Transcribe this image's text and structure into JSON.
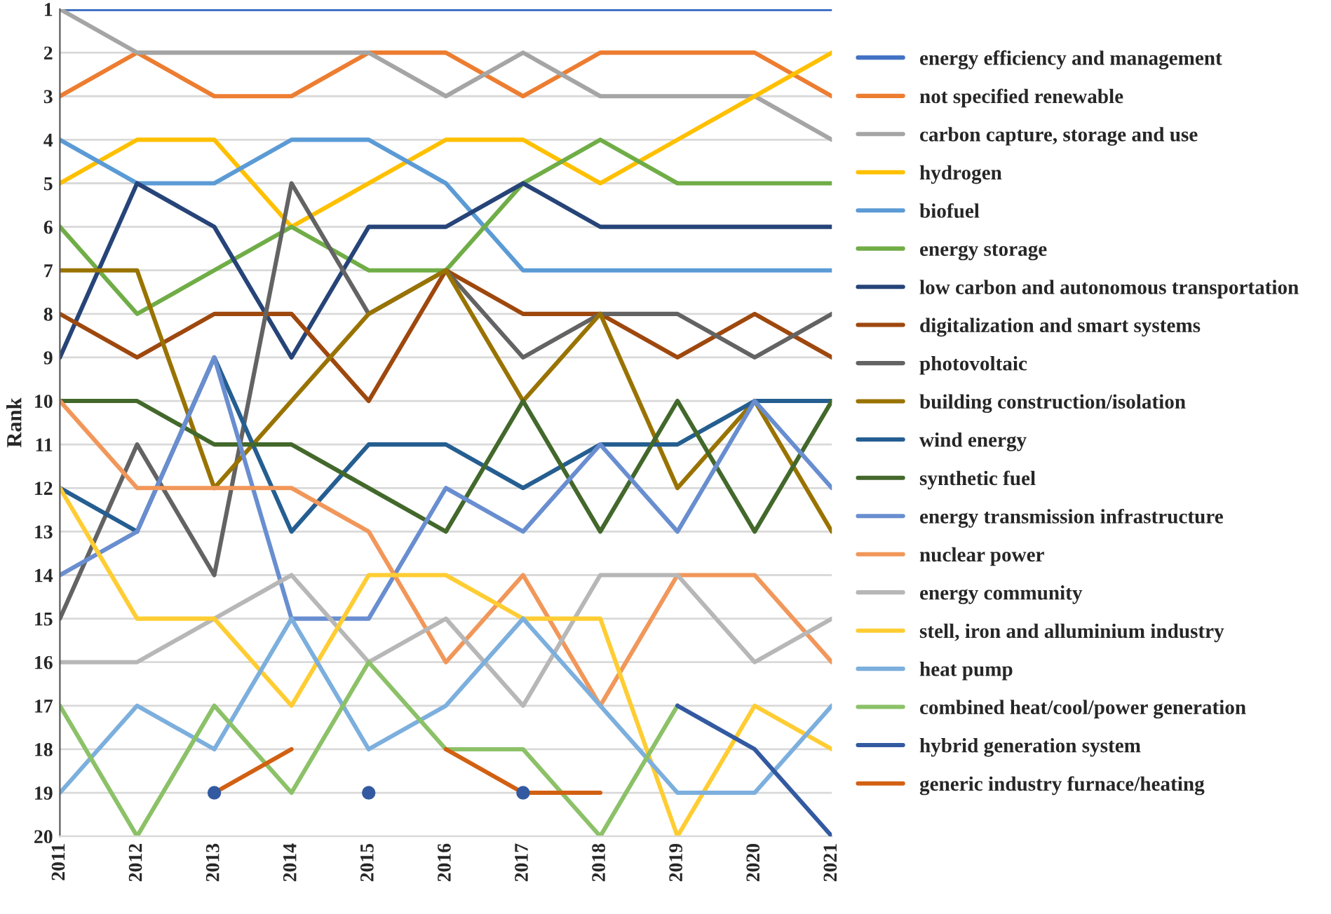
{
  "chart_data": {
    "type": "line",
    "ylabel": "Rank",
    "categories": [
      "2011",
      "2012",
      "2013",
      "2014",
      "2015",
      "2016",
      "2017",
      "2018",
      "2019",
      "2020",
      "2021"
    ],
    "ylim": [
      20,
      1
    ],
    "yticks": [
      1,
      2,
      3,
      4,
      5,
      6,
      7,
      8,
      9,
      10,
      11,
      12,
      13,
      14,
      15,
      16,
      17,
      18,
      19,
      20
    ],
    "grid": "y",
    "legend": "right",
    "line_style": "solid",
    "series": [
      {
        "name": "energy efficiency and management",
        "color": "#4472c4",
        "values": [
          1,
          1,
          1,
          1,
          1,
          1,
          1,
          1,
          1,
          1,
          1
        ]
      },
      {
        "name": "not specified renewable",
        "color": "#ed7d31",
        "values": [
          3,
          2,
          3,
          3,
          2,
          2,
          3,
          2,
          2,
          2,
          3
        ]
      },
      {
        "name": "carbon capture, storage and use",
        "color": "#a5a5a5",
        "values": [
          1,
          2,
          2,
          2,
          2,
          3,
          2,
          3,
          3,
          3,
          4
        ]
      },
      {
        "name": "hydrogen",
        "color": "#ffc000",
        "values": [
          5,
          4,
          4,
          6,
          5,
          4,
          4,
          5,
          4,
          3,
          2
        ]
      },
      {
        "name": "biofuel",
        "color": "#5b9bd5",
        "values": [
          4,
          5,
          5,
          4,
          4,
          5,
          7,
          7,
          7,
          7,
          7
        ]
      },
      {
        "name": "energy storage",
        "color": "#70ad47",
        "values": [
          6,
          8,
          7,
          6,
          7,
          7,
          5,
          4,
          5,
          5,
          5
        ]
      },
      {
        "name": "low carbon and autonomous transportation",
        "color": "#264478",
        "values": [
          9,
          5,
          6,
          9,
          6,
          6,
          5,
          6,
          6,
          6,
          6
        ]
      },
      {
        "name": "digitalization and smart systems",
        "color": "#9e480e",
        "values": [
          8,
          9,
          8,
          8,
          10,
          7,
          8,
          8,
          9,
          8,
          9
        ]
      },
      {
        "name": "photovoltaic",
        "color": "#636363",
        "values": [
          15,
          11,
          14,
          5,
          8,
          7,
          9,
          8,
          8,
          9,
          8
        ]
      },
      {
        "name": "building construction/isolation",
        "color": "#997300",
        "values": [
          7,
          7,
          12,
          10,
          8,
          7,
          10,
          8,
          12,
          10,
          13
        ]
      },
      {
        "name": "wind energy",
        "color": "#255e91",
        "values": [
          12,
          13,
          9,
          13,
          11,
          11,
          12,
          11,
          11,
          10,
          10
        ]
      },
      {
        "name": "synthetic fuel",
        "color": "#43682b",
        "values": [
          10,
          10,
          11,
          11,
          12,
          13,
          10,
          13,
          10,
          13,
          10
        ]
      },
      {
        "name": "energy transmission infrastructure",
        "color": "#698ed0",
        "values": [
          14,
          13,
          9,
          15,
          15,
          12,
          13,
          11,
          13,
          10,
          12
        ]
      },
      {
        "name": "nuclear power",
        "color": "#f1975a",
        "values": [
          10,
          12,
          12,
          12,
          13,
          16,
          14,
          17,
          14,
          14,
          16
        ]
      },
      {
        "name": "energy community",
        "color": "#b7b7b7",
        "values": [
          16,
          16,
          15,
          14,
          16,
          15,
          17,
          14,
          14,
          16,
          15
        ]
      },
      {
        "name": "stell, iron and alluminium industry",
        "color": "#ffcd33",
        "values": [
          12,
          15,
          15,
          17,
          14,
          14,
          15,
          15,
          20,
          17,
          18
        ]
      },
      {
        "name": "heat pump",
        "color": "#7cafdd",
        "values": [
          19,
          17,
          18,
          15,
          18,
          17,
          15,
          17,
          19,
          19,
          17
        ]
      },
      {
        "name": "combined heat/cool/power generation",
        "color": "#8cc168",
        "values": [
          17,
          20,
          17,
          19,
          16,
          18,
          18,
          20,
          17,
          null,
          null
        ]
      },
      {
        "name": "hybrid generation system",
        "color": "#335aa1",
        "values": [
          null,
          null,
          19,
          null,
          19,
          null,
          19,
          null,
          17,
          18,
          20
        ]
      },
      {
        "name": "generic industry furnace/heating",
        "color": "#d26012",
        "values": [
          null,
          null,
          19,
          18,
          null,
          18,
          19,
          19,
          null,
          null,
          null
        ]
      }
    ]
  }
}
